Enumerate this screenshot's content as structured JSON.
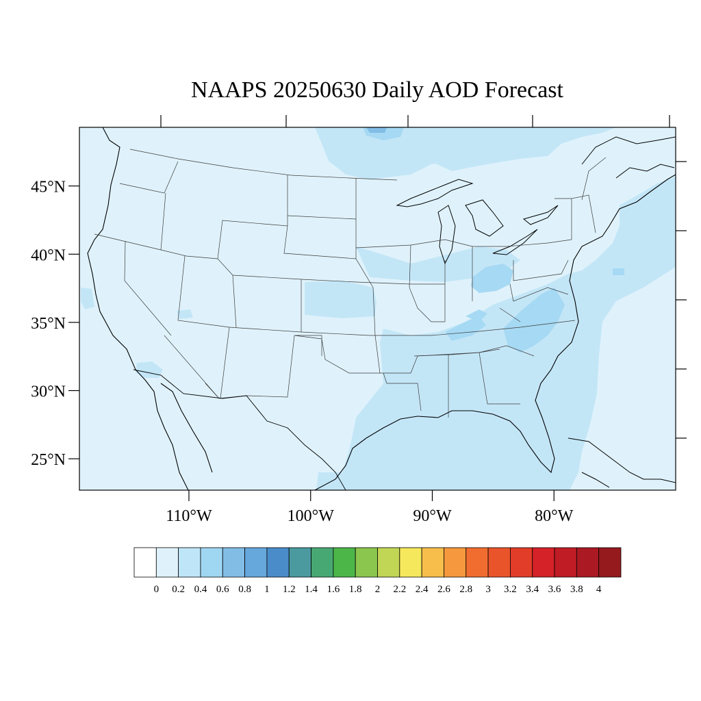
{
  "title": "NAAPS 20250630 Daily AOD Forecast",
  "map": {
    "lon_range": [
      -119,
      -70
    ],
    "lat_range": [
      22.7,
      49.3
    ],
    "lat_ticks": [
      {
        "value": 45,
        "label": "45°N"
      },
      {
        "value": 40,
        "label": "40°N"
      },
      {
        "value": 35,
        "label": "35°N"
      },
      {
        "value": 30,
        "label": "30°N"
      },
      {
        "value": 25,
        "label": "25°N"
      }
    ],
    "lon_ticks": [
      {
        "value": -110,
        "label": "110°W"
      },
      {
        "value": -100,
        "label": "100°W"
      },
      {
        "value": -90,
        "label": "90°W"
      },
      {
        "value": -80,
        "label": "80°W"
      }
    ],
    "field_bands": [
      {
        "name": "background",
        "range": "0.2-0.4"
      },
      {
        "name": "gulf-atlantic",
        "range": "0.4-0.6"
      },
      {
        "name": "southeast-hotspots",
        "range": "0.6-0.8"
      }
    ]
  },
  "colorbar": {
    "labels": [
      "0",
      "0.2",
      "0.4",
      "0.6",
      "0.8",
      "1",
      "1.2",
      "1.4",
      "1.6",
      "1.8",
      "2",
      "2.2",
      "2.4",
      "2.6",
      "2.8",
      "3",
      "3.2",
      "3.4",
      "3.6",
      "3.8",
      "4"
    ],
    "colors": [
      "#ffffff",
      "#dff2fb",
      "#bfe6f8",
      "#9fd6f2",
      "#82bde6",
      "#66a7dc",
      "#4a8cc9",
      "#4b9aa0",
      "#48a874",
      "#4cb649",
      "#8bc64e",
      "#c2d656",
      "#f6e85c",
      "#f7be4c",
      "#f6983d",
      "#f06d2f",
      "#e9542b",
      "#e23d29",
      "#d52128",
      "#bf1c25",
      "#ab1a22",
      "#951a1e"
    ]
  }
}
